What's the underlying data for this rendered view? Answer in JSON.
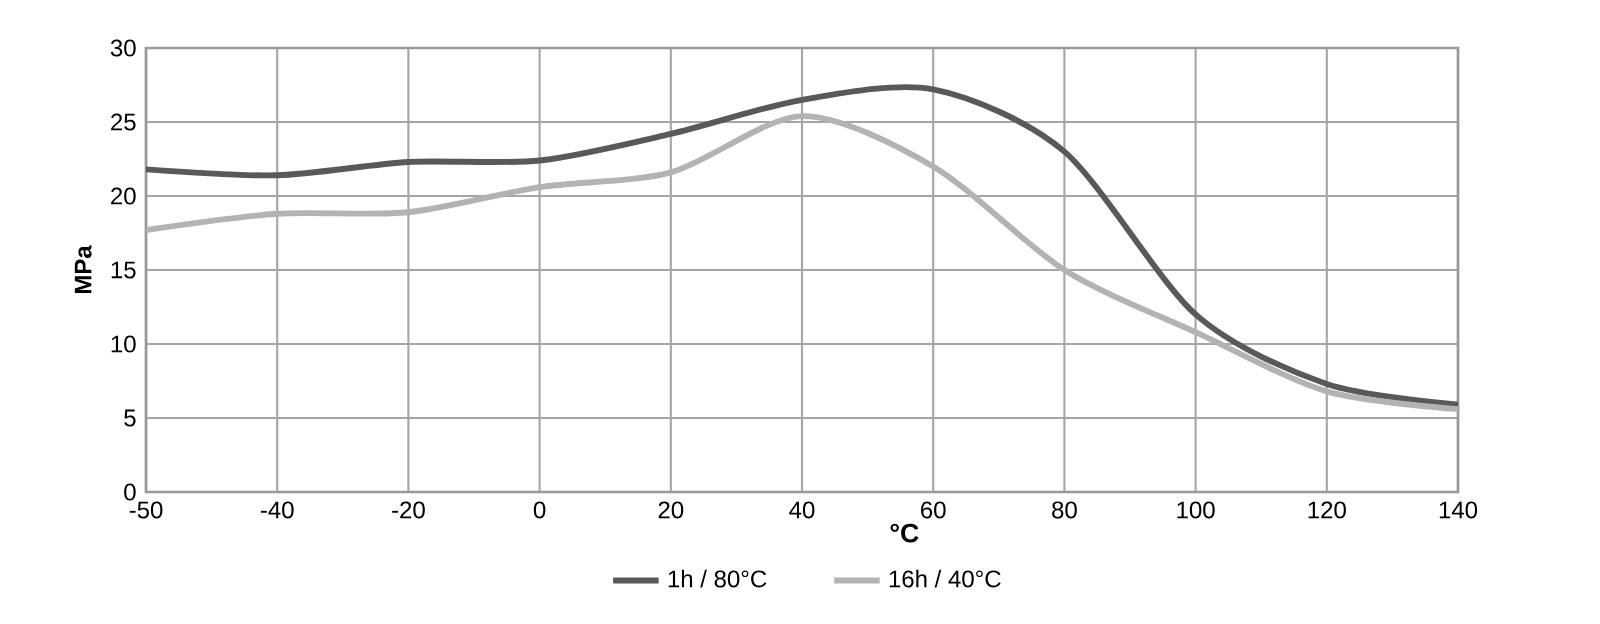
{
  "chart_data": {
    "type": "line",
    "xlabel": "°C",
    "ylabel": "MPa",
    "categories": [
      "-50",
      "-40",
      "-20",
      "0",
      "20",
      "40",
      "60",
      "80",
      "100",
      "120",
      "140"
    ],
    "ylim": [
      0,
      30
    ],
    "yticks": [
      0,
      5,
      10,
      15,
      20,
      25,
      30
    ],
    "grid": true,
    "legend": "bottom",
    "marker": "none",
    "line_style": "solid",
    "series": [
      {
        "name": "1h / 80°C",
        "color": "#595959",
        "values": [
          21.8,
          21.4,
          22.3,
          22.4,
          24.2,
          26.5,
          27.2,
          23.0,
          12.0,
          7.3,
          5.9
        ]
      },
      {
        "name": "16h / 40°C",
        "color": "#b3b3b3",
        "values": [
          17.7,
          18.8,
          18.9,
          20.6,
          21.6,
          25.4,
          22.0,
          15.0,
          10.8,
          6.8,
          5.6
        ]
      }
    ]
  }
}
